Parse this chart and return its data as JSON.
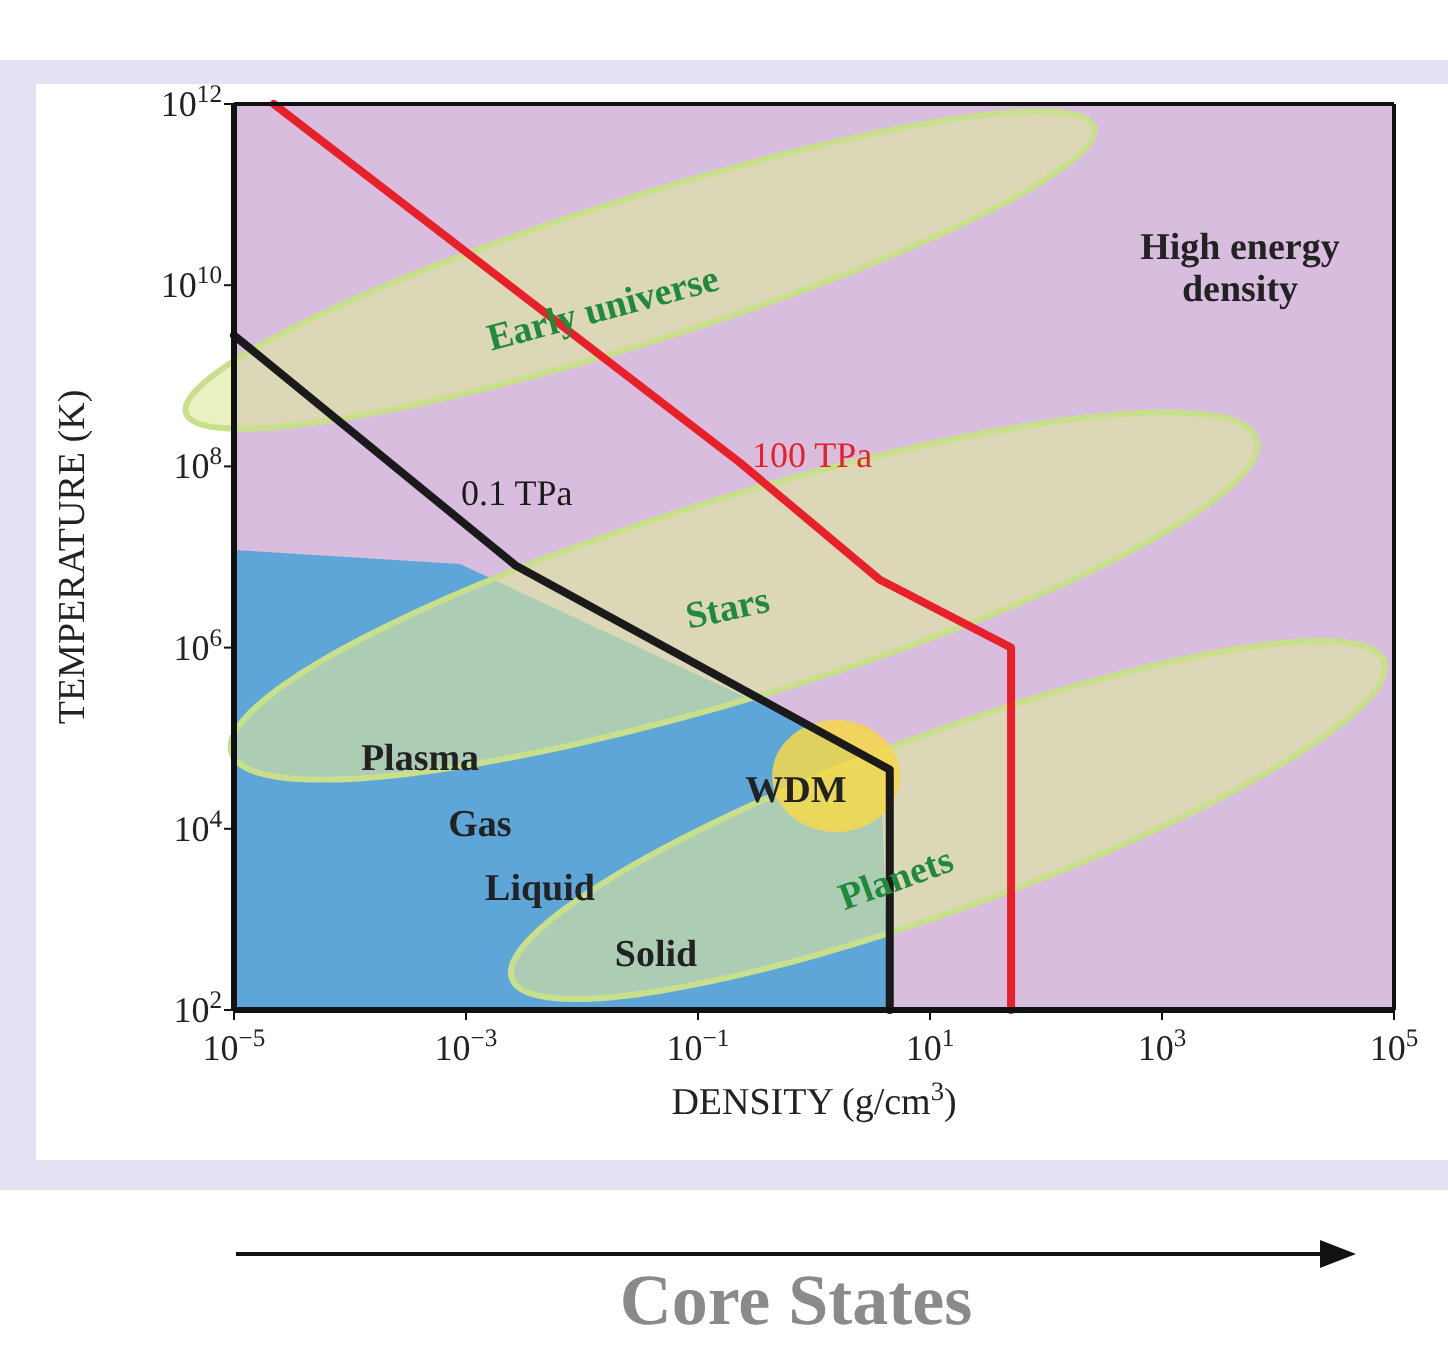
{
  "chart_data": {
    "type": "line",
    "xlabel": "DENSITY (g/cm$^{3}$)",
    "ylabel": "TEMPERATURE (K)",
    "log": "xy",
    "grid": false,
    "marker": "none",
    "xlim": [
      1e-05,
      100000.0
    ],
    "ylim": [
      100.0,
      1000000000000.0
    ],
    "xticks": [
      {
        "value": 1e-05,
        "label": "10$^{−5}$"
      },
      {
        "value": 0.001,
        "label": "10$^{−3}$"
      },
      {
        "value": 0.1,
        "label": "10$^{−1}$"
      },
      {
        "value": 10,
        "label": "10$^{1}$"
      },
      {
        "value": 1000,
        "label": "10$^{3}$"
      },
      {
        "value": 100000,
        "label": "10$^{5}$"
      }
    ],
    "yticks": [
      {
        "value": 100.0,
        "label": "10$^{2}$"
      },
      {
        "value": 10000.0,
        "label": "10$^{4}$"
      },
      {
        "value": 1000000.0,
        "label": "10$^{6}$"
      },
      {
        "value": 100000000.0,
        "label": "10$^{8}$"
      },
      {
        "value": 10000000000.0,
        "label": "10$^{10}$"
      },
      {
        "value": 1000000000000.0,
        "label": "10$^{12}$"
      }
    ],
    "series": [
      {
        "name": "0.1 TPa",
        "color": "#1a1a1a",
        "x": [
          1e-05,
          0.0027,
          1.1,
          4.5,
          4.5
        ],
        "values": [
          2800000000.0,
          8000000.0,
          120000.0,
          45000.0,
          100.0
        ]
      },
      {
        "name": "100 TPa",
        "color": "#e8202a",
        "x": [
          2.2e-05,
          0.23,
          3.7,
          50,
          50
        ],
        "values": [
          1000000000000.0,
          110000000.0,
          5600000.0,
          1000000.0,
          100.0
        ]
      }
    ],
    "annotations": [
      "Early universe",
      "High energy\ndensity",
      "Stars",
      "Plasma",
      "Gas",
      "Liquid",
      "Solid",
      "WDM",
      "Planets",
      "Core States"
    ]
  }
}
